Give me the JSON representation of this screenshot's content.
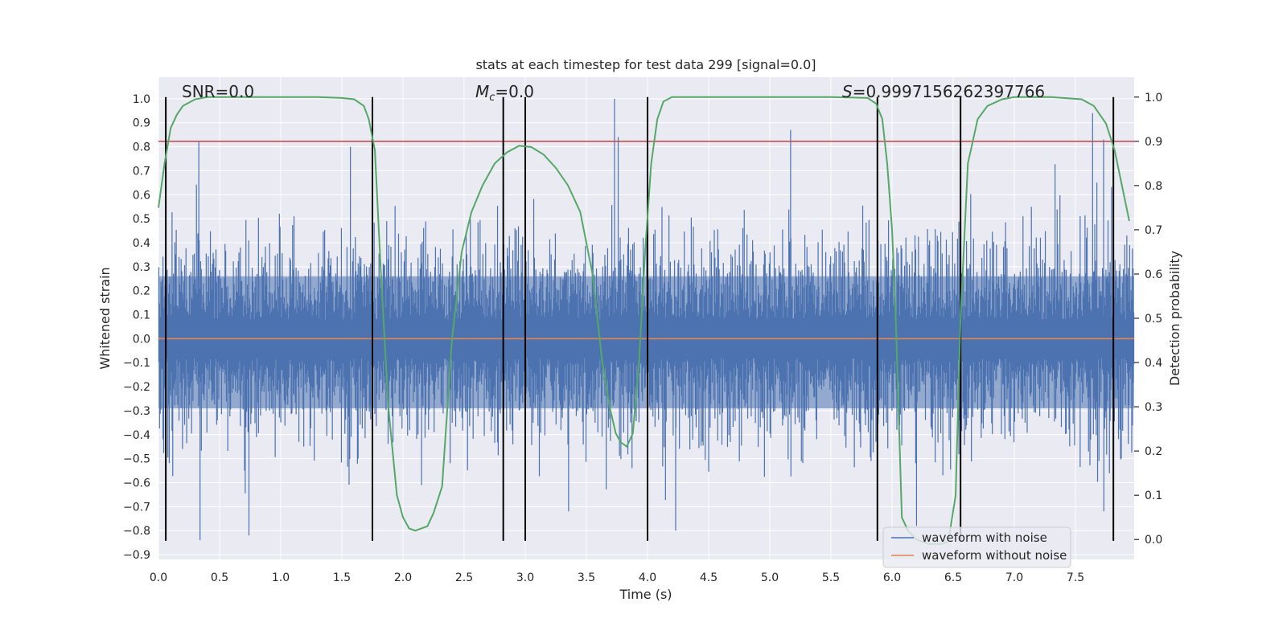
{
  "chart_data": {
    "type": "line",
    "title": "stats at each timestep for test data 299 [signal=0.0]",
    "xlabel": "Time (s)",
    "ylabel": "Whitened strain",
    "y2label": "Detection probability",
    "xlim": [
      0.0,
      7.98
    ],
    "ylim": [
      -0.92,
      1.09
    ],
    "y2lim": [
      -0.045,
      1.045
    ],
    "xticks": [
      "0.0",
      "0.5",
      "1.0",
      "1.5",
      "2.0",
      "2.5",
      "3.0",
      "3.5",
      "4.0",
      "4.5",
      "5.0",
      "5.5",
      "6.0",
      "6.5",
      "7.0",
      "7.5"
    ],
    "yticks": [
      "1.0",
      "0.9",
      "0.8",
      "0.7",
      "0.6",
      "0.5",
      "0.4",
      "0.3",
      "0.2",
      "0.1",
      "0.0",
      "−0.1",
      "−0.2",
      "−0.3",
      "−0.4",
      "−0.5",
      "−0.6",
      "−0.7",
      "−0.8",
      "−0.9"
    ],
    "y2ticks": [
      "0.0",
      "0.1",
      "0.2",
      "0.3",
      "0.4",
      "0.5",
      "0.6",
      "0.7",
      "0.8",
      "0.9",
      "1.0"
    ],
    "grid": true,
    "legend_position": "lower-right",
    "annotations": {
      "snr": "SNR=0.0",
      "mc": "M",
      "mc_sub": "c",
      "mc_value": "=0.0",
      "s_symbol": "S",
      "s_value": "=0.9997156262397766"
    },
    "series": [
      {
        "name": "waveform with noise",
        "axis": "left",
        "color": "#4c72b0",
        "approx_envelope": {
          "typical_abs": 0.3,
          "max": 1.0,
          "min": -0.84
        },
        "notable_peaks": [
          {
            "x": 0.33,
            "y": 0.82
          },
          {
            "x": 0.34,
            "y": -0.84
          },
          {
            "x": 0.74,
            "y": -0.82
          },
          {
            "x": 1.57,
            "y": 0.8
          },
          {
            "x": 3.73,
            "y": 1.0
          },
          {
            "x": 3.76,
            "y": 0.84
          },
          {
            "x": 5.17,
            "y": 0.87
          },
          {
            "x": 4.23,
            "y": -0.8
          },
          {
            "x": 7.64,
            "y": 0.94
          },
          {
            "x": 7.73,
            "y": 0.83
          },
          {
            "x": 6.2,
            "y": -0.78
          }
        ]
      },
      {
        "name": "waveform without noise",
        "axis": "left",
        "color": "#dd8452",
        "x": [
          0.0,
          7.98
        ],
        "y": [
          0.0,
          0.0
        ]
      },
      {
        "name": "detection-probability",
        "axis": "right",
        "color": "#55a868",
        "x": [
          0.0,
          0.05,
          0.1,
          0.15,
          0.2,
          0.3,
          0.4,
          0.5,
          0.7,
          1.0,
          1.3,
          1.5,
          1.6,
          1.68,
          1.72,
          1.77,
          1.82,
          1.88,
          1.95,
          2.0,
          2.05,
          2.1,
          2.15,
          2.2,
          2.25,
          2.32,
          2.4,
          2.48,
          2.56,
          2.65,
          2.75,
          2.85,
          2.95,
          3.05,
          3.15,
          3.25,
          3.35,
          3.45,
          3.55,
          3.63,
          3.69,
          3.74,
          3.78,
          3.83,
          3.88,
          3.93,
          3.98,
          4.03,
          4.08,
          4.13,
          4.2,
          4.3,
          4.5,
          5.0,
          5.5,
          5.8,
          5.87,
          5.92,
          5.96,
          6.0,
          6.03,
          6.08,
          6.13,
          6.2,
          6.3,
          6.4,
          6.46,
          6.52,
          6.56,
          6.62,
          6.7,
          6.78,
          6.9,
          7.0,
          7.3,
          7.55,
          7.65,
          7.75,
          7.82,
          7.88,
          7.94
        ],
        "y": [
          0.75,
          0.85,
          0.93,
          0.96,
          0.98,
          0.995,
          1.0,
          1.0,
          1.0,
          1.0,
          1.0,
          0.998,
          0.995,
          0.98,
          0.95,
          0.88,
          0.6,
          0.3,
          0.1,
          0.05,
          0.025,
          0.02,
          0.025,
          0.03,
          0.06,
          0.12,
          0.45,
          0.65,
          0.74,
          0.8,
          0.85,
          0.875,
          0.89,
          0.887,
          0.87,
          0.84,
          0.8,
          0.74,
          0.6,
          0.4,
          0.3,
          0.24,
          0.22,
          0.21,
          0.24,
          0.4,
          0.65,
          0.85,
          0.95,
          0.99,
          1.0,
          1.0,
          1.0,
          1.0,
          1.0,
          0.998,
          0.985,
          0.95,
          0.85,
          0.7,
          0.5,
          0.05,
          0.02,
          0.0,
          -0.01,
          -0.01,
          -0.005,
          0.1,
          0.5,
          0.85,
          0.95,
          0.98,
          0.995,
          1.0,
          1.0,
          0.995,
          0.98,
          0.94,
          0.88,
          0.8,
          0.72
        ]
      }
    ],
    "threshold_line": {
      "axis": "right",
      "y": 0.9,
      "color": "#c44e52"
    },
    "vertical_markers": {
      "x": [
        0.06,
        1.75,
        2.82,
        3.0,
        4.0,
        5.88,
        6.56,
        7.81
      ],
      "color": "#000000"
    }
  }
}
